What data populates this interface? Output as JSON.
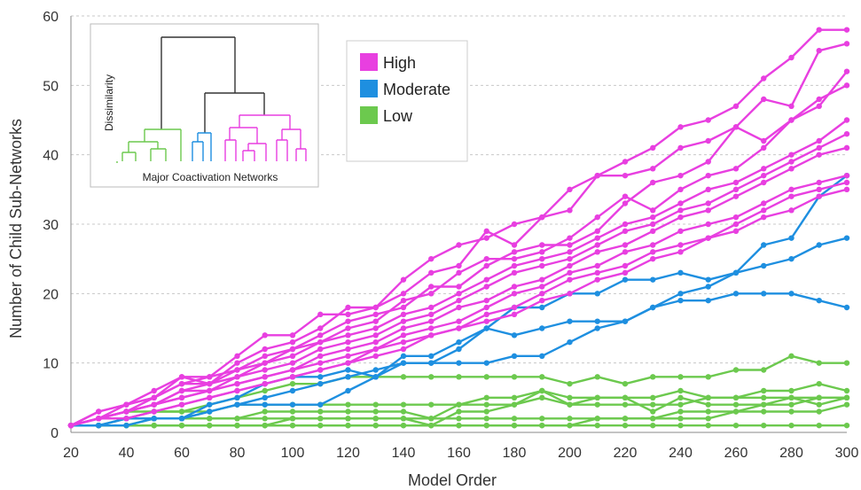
{
  "chart_data": {
    "type": "line",
    "xlabel": "Model Order",
    "ylabel": "Number of Child Sub-Networks",
    "xlim": [
      20,
      300
    ],
    "ylim": [
      0,
      60
    ],
    "xticks": [
      20,
      40,
      60,
      80,
      100,
      120,
      140,
      160,
      180,
      200,
      220,
      240,
      260,
      280,
      300
    ],
    "yticks": [
      0,
      10,
      20,
      30,
      40,
      50,
      60
    ],
    "grid": "horizontal-dashed",
    "legend_position": "top-center",
    "groups": [
      {
        "name": "High",
        "color": "#e83fe0"
      },
      {
        "name": "Moderate",
        "color": "#1e8fe0"
      },
      {
        "name": "Low",
        "color": "#6cc94e"
      }
    ],
    "x": [
      20,
      30,
      40,
      50,
      60,
      70,
      80,
      90,
      100,
      110,
      120,
      130,
      140,
      150,
      160,
      170,
      180,
      190,
      200,
      210,
      220,
      230,
      240,
      250,
      260,
      270,
      280,
      290,
      300
    ],
    "series": [
      {
        "group": "High",
        "values": [
          1,
          3,
          4,
          6,
          8,
          8,
          11,
          14,
          14,
          17,
          17,
          18,
          22,
          25,
          27,
          28,
          30,
          31,
          35,
          37,
          39,
          41,
          44,
          45,
          47,
          51,
          54,
          58,
          58
        ]
      },
      {
        "group": "High",
        "values": [
          1,
          3,
          4,
          5,
          8,
          7,
          10,
          12,
          13,
          15,
          18,
          18,
          20,
          23,
          24,
          29,
          27,
          31,
          32,
          37,
          37,
          38,
          41,
          42,
          44,
          48,
          47,
          55,
          56
        ]
      },
      {
        "group": "High",
        "values": [
          1,
          2,
          4,
          5,
          7,
          8,
          9,
          11,
          12,
          14,
          16,
          17,
          18,
          21,
          21,
          24,
          26,
          27,
          27,
          29,
          33,
          36,
          37,
          39,
          44,
          42,
          45,
          47,
          52
        ]
      },
      {
        "group": "High",
        "values": [
          1,
          2,
          3,
          5,
          7,
          7,
          9,
          10,
          12,
          13,
          15,
          16,
          19,
          20,
          23,
          25,
          25,
          26,
          28,
          31,
          34,
          32,
          35,
          37,
          38,
          41,
          45,
          48,
          50
        ]
      },
      {
        "group": "High",
        "values": [
          1,
          2,
          3,
          4,
          6,
          7,
          8,
          10,
          11,
          13,
          14,
          15,
          17,
          18,
          20,
          22,
          24,
          25,
          26,
          28,
          30,
          31,
          33,
          35,
          36,
          38,
          40,
          42,
          45
        ]
      },
      {
        "group": "High",
        "values": [
          1,
          2,
          3,
          4,
          6,
          6,
          8,
          9,
          10,
          12,
          13,
          14,
          16,
          17,
          19,
          21,
          23,
          24,
          25,
          27,
          29,
          30,
          32,
          33,
          35,
          37,
          39,
          41,
          43
        ]
      },
      {
        "group": "High",
        "values": [
          1,
          2,
          3,
          4,
          5,
          6,
          7,
          8,
          9,
          11,
          12,
          13,
          15,
          16,
          18,
          19,
          21,
          22,
          24,
          26,
          27,
          29,
          31,
          32,
          34,
          36,
          38,
          40,
          41
        ]
      },
      {
        "group": "High",
        "values": [
          1,
          2,
          3,
          4,
          5,
          6,
          7,
          8,
          9,
          10,
          11,
          12,
          14,
          15,
          16,
          18,
          20,
          21,
          23,
          24,
          26,
          27,
          29,
          30,
          31,
          33,
          35,
          36,
          37
        ]
      },
      {
        "group": "High",
        "values": [
          1,
          2,
          2,
          3,
          4,
          5,
          6,
          7,
          8,
          9,
          10,
          12,
          13,
          14,
          15,
          17,
          18,
          20,
          22,
          23,
          24,
          26,
          27,
          28,
          30,
          32,
          34,
          35,
          36
        ]
      },
      {
        "group": "High",
        "values": [
          1,
          2,
          2,
          3,
          4,
          5,
          6,
          7,
          8,
          9,
          10,
          11,
          12,
          14,
          15,
          16,
          17,
          19,
          20,
          22,
          23,
          25,
          26,
          28,
          29,
          31,
          32,
          34,
          35
        ]
      },
      {
        "group": "Moderate",
        "values": [
          1,
          1,
          2,
          2,
          2,
          4,
          5,
          7,
          8,
          8,
          9,
          8,
          10,
          10,
          12,
          15,
          18,
          18,
          20,
          20,
          22,
          22,
          23,
          22,
          23,
          24,
          25,
          27,
          28
        ]
      },
      {
        "group": "Moderate",
        "values": [
          1,
          1,
          2,
          2,
          2,
          3,
          4,
          4,
          4,
          4,
          6,
          8,
          11,
          11,
          13,
          15,
          14,
          15,
          16,
          16,
          16,
          18,
          20,
          21,
          23,
          27,
          28,
          34,
          37
        ]
      },
      {
        "group": "Moderate",
        "values": [
          1,
          1,
          1,
          2,
          2,
          3,
          4,
          5,
          6,
          7,
          8,
          9,
          10,
          10,
          10,
          10,
          11,
          11,
          13,
          15,
          16,
          18,
          19,
          19,
          20,
          20,
          20,
          19,
          18
        ]
      },
      {
        "group": "Low",
        "values": [
          1,
          2,
          3,
          3,
          3,
          4,
          5,
          6,
          7,
          7,
          8,
          8,
          8,
          8,
          8,
          8,
          8,
          8,
          7,
          8,
          7,
          8,
          8,
          8,
          9,
          9,
          11,
          10,
          10
        ]
      },
      {
        "group": "Low",
        "values": [
          1,
          2,
          2,
          3,
          3,
          3,
          4,
          4,
          4,
          4,
          4,
          4,
          4,
          4,
          4,
          5,
          5,
          6,
          5,
          5,
          5,
          5,
          6,
          5,
          5,
          6,
          6,
          7,
          6
        ]
      },
      {
        "group": "Low",
        "values": [
          1,
          1,
          2,
          2,
          2,
          2,
          2,
          3,
          3,
          3,
          3,
          3,
          3,
          2,
          4,
          4,
          4,
          6,
          4,
          4,
          4,
          4,
          4,
          5,
          5,
          5,
          5,
          5,
          5
        ]
      },
      {
        "group": "Low",
        "values": [
          1,
          1,
          1,
          2,
          2,
          2,
          2,
          2,
          2,
          2,
          2,
          2,
          2,
          1,
          3,
          3,
          4,
          5,
          4,
          5,
          5,
          3,
          5,
          4,
          4,
          4,
          4,
          5,
          5
        ]
      },
      {
        "group": "Low",
        "values": [
          1,
          1,
          1,
          1,
          1,
          1,
          1,
          1,
          2,
          2,
          2,
          2,
          2,
          2,
          2,
          2,
          2,
          2,
          2,
          2,
          2,
          2,
          3,
          3,
          3,
          4,
          5,
          4,
          5
        ]
      },
      {
        "group": "Low",
        "values": [
          1,
          1,
          1,
          1,
          1,
          1,
          1,
          1,
          1,
          1,
          1,
          1,
          1,
          1,
          1,
          1,
          1,
          1,
          1,
          2,
          2,
          2,
          2,
          2,
          3,
          3,
          3,
          3,
          4
        ]
      },
      {
        "group": "Low",
        "values": [
          1,
          1,
          1,
          1,
          1,
          1,
          1,
          1,
          1,
          1,
          1,
          1,
          1,
          1,
          1,
          1,
          1,
          1,
          1,
          1,
          1,
          1,
          1,
          1,
          1,
          1,
          1,
          1,
          1
        ]
      }
    ],
    "inset": {
      "ylabel": "Dissimilarity",
      "xlabel": "Major Coactivation Networks",
      "trunk_color": "#333333",
      "groups": [
        "Low",
        "Moderate",
        "High"
      ]
    }
  }
}
